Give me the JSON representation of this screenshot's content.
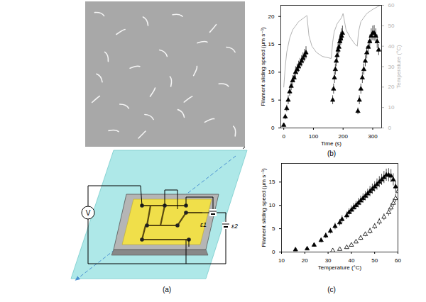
{
  "panels": {
    "a": {
      "caption": "(a)",
      "voltmeter": "V",
      "sources": [
        "ε1",
        "ε2"
      ]
    }
  },
  "chart_data": [
    {
      "caption": "(b)",
      "type": "scatter",
      "xlabel": "Time (s)",
      "ylabel": "Filament sliding speed (μm s⁻¹)",
      "y2label": "Temperature (°C)",
      "xlim": [
        -10,
        330
      ],
      "xticks": [
        0,
        100,
        200,
        300
      ],
      "ylim": [
        0,
        22
      ],
      "yticks": [
        0,
        5,
        10,
        15,
        20
      ],
      "y2lim": [
        0,
        60
      ],
      "y2ticks": [
        0,
        10,
        20,
        30,
        40,
        50,
        60
      ],
      "series": [
        {
          "type": "scatter",
          "marker": "triangle",
          "color": "#000000",
          "x": [
            0,
            5,
            10,
            15,
            20,
            25,
            30,
            35,
            40,
            45,
            50,
            55,
            60,
            65,
            70,
            75,
            165,
            168,
            171,
            174,
            177,
            180,
            183,
            186,
            189,
            192,
            195,
            198,
            250,
            255,
            260,
            265,
            270,
            275,
            280,
            285,
            290,
            295,
            300,
            305,
            310,
            315,
            320
          ],
          "values": [
            0.5,
            2,
            3.5,
            5,
            6.5,
            7.5,
            8.5,
            9,
            10,
            10.5,
            11,
            11.5,
            12,
            12.5,
            13,
            13.5,
            5,
            7,
            9,
            10.5,
            12,
            13,
            14,
            14.5,
            15.5,
            16,
            16.5,
            17,
            3,
            5,
            7,
            9,
            10.5,
            12,
            13.5,
            14.5,
            15.5,
            16.5,
            17,
            17,
            16.5,
            15.5,
            14
          ],
          "errors": [
            0.3,
            0.5,
            0.6,
            0.8,
            0.8,
            0.8,
            0.9,
            0.9,
            1,
            1,
            1,
            1,
            1,
            1,
            1.1,
            1.1,
            0.8,
            0.9,
            1,
            1,
            1,
            1.1,
            1.1,
            1.2,
            1.2,
            1.2,
            1.3,
            1.3,
            0.6,
            0.8,
            0.9,
            1,
            1,
            1,
            1.1,
            1.2,
            1.2,
            1.3,
            1.3,
            1.4,
            1.3,
            1.2,
            1
          ]
        },
        {
          "type": "line",
          "axis": "y2",
          "color": "#b3b3b3",
          "x": [
            0,
            5,
            10,
            20,
            30,
            50,
            78,
            85,
            95,
            110,
            130,
            160,
            165,
            170,
            180,
            195,
            200,
            210,
            225,
            240,
            248,
            252,
            260,
            280,
            300,
            325
          ],
          "values": [
            20,
            30,
            37,
            44,
            48,
            52,
            55,
            45,
            40,
            37,
            35,
            34,
            42,
            47,
            51,
            54,
            56,
            48,
            44,
            41,
            40,
            47,
            52,
            56,
            58,
            60
          ]
        }
      ]
    },
    {
      "caption": "(c)",
      "type": "scatter",
      "xlabel": "Temperature (°C)",
      "ylabel": "Filament sliding speed (μm s⁻¹)",
      "xlim": [
        10,
        60
      ],
      "xticks": [
        10,
        20,
        30,
        40,
        50,
        60
      ],
      "ylim": [
        0,
        19
      ],
      "yticks": [
        0,
        5,
        10,
        15
      ],
      "series": [
        {
          "type": "scatter",
          "marker": "triangle",
          "color": "#000000",
          "x": [
            16,
            21,
            24,
            27,
            29,
            31,
            33,
            35,
            36,
            38,
            39,
            40,
            41,
            42,
            43,
            44,
            45,
            46,
            47,
            48,
            49,
            50,
            51,
            52,
            53,
            54,
            55,
            56,
            57,
            58,
            59
          ],
          "values": [
            0.5,
            0.7,
            1.5,
            2.5,
            3.5,
            4.5,
            5.5,
            6.3,
            7,
            7.8,
            8.5,
            9,
            9.5,
            10,
            10.5,
            11,
            11.5,
            12,
            12.5,
            13,
            13.5,
            14,
            14.5,
            15,
            15.5,
            16,
            16.5,
            16.5,
            16.3,
            15.5,
            14
          ],
          "errors": [
            0.2,
            0.3,
            0.4,
            0.5,
            0.6,
            0.6,
            0.7,
            0.7,
            0.8,
            0.8,
            0.8,
            0.9,
            0.9,
            0.9,
            1,
            1,
            1,
            1,
            1,
            1.1,
            1.1,
            1.1,
            1.2,
            1.2,
            1.2,
            1.3,
            1.3,
            1.4,
            1.4,
            1.3,
            1.2
          ]
        },
        {
          "type": "scatter",
          "marker": "triangle-open",
          "color": "#000000",
          "x": [
            32,
            35,
            38,
            40,
            42,
            44,
            46,
            48,
            50,
            52,
            54,
            56,
            57,
            58,
            59,
            60
          ],
          "values": [
            0.3,
            0.6,
            1,
            1.5,
            2.2,
            3,
            3.8,
            4.5,
            5.5,
            6.5,
            7.5,
            8.5,
            9.5,
            10.5,
            11.5,
            13
          ],
          "errors": [
            0.2,
            0.3,
            0.3,
            0.4,
            0.4,
            0.5,
            0.5,
            0.6,
            0.6,
            0.7,
            0.7,
            0.8,
            0.8,
            0.9,
            0.9,
            1
          ]
        }
      ]
    }
  ]
}
